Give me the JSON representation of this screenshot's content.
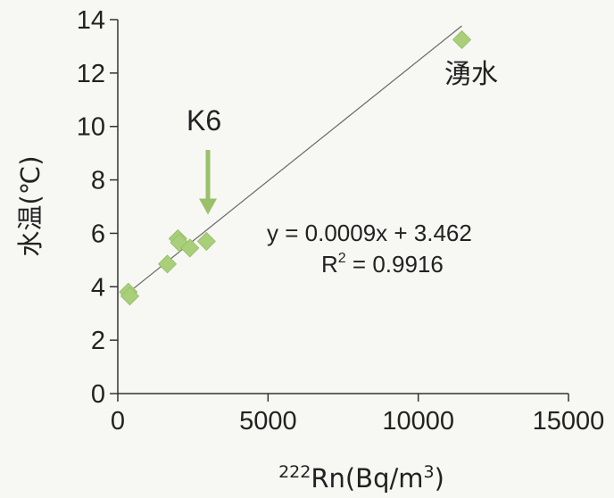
{
  "chart_data": {
    "type": "scatter",
    "xlabel_sup": "222",
    "xlabel_main": "Rn(Bq/m",
    "xlabel_sup2": "3",
    "xlabel_close": ")",
    "ylabel": "水温(℃)",
    "xlim": [
      0,
      15000
    ],
    "ylim": [
      0,
      14
    ],
    "x_ticks": [
      0,
      5000,
      10000,
      15000
    ],
    "y_ticks": [
      0,
      2,
      4,
      6,
      8,
      10,
      12,
      14
    ],
    "grid": false,
    "series": [
      {
        "color": "#a9cf7a",
        "points": [
          {
            "x": 350,
            "y": 3.8
          },
          {
            "x": 400,
            "y": 3.65
          },
          {
            "x": 1650,
            "y": 4.85
          },
          {
            "x": 2000,
            "y": 5.8
          },
          {
            "x": 2050,
            "y": 5.65
          },
          {
            "x": 2400,
            "y": 5.45
          },
          {
            "x": 2950,
            "y": 5.7
          },
          {
            "x": 11450,
            "y": 13.25
          }
        ]
      }
    ],
    "trendline": {
      "slope": 0.0009,
      "intercept": 3.462,
      "x_range": [
        300,
        11450
      ],
      "color": "#666666"
    },
    "equation_text": "y = 0.0009x + 3.462",
    "r2_label": "R",
    "r2_sup": "2",
    "r2_value": " = 0.9916",
    "annotations": {
      "spring_label": "湧水",
      "k6_label": "K6",
      "k6_arrow_target": {
        "x": 3000,
        "y": 6.7
      },
      "arrow_color": "#9ac06a"
    }
  }
}
